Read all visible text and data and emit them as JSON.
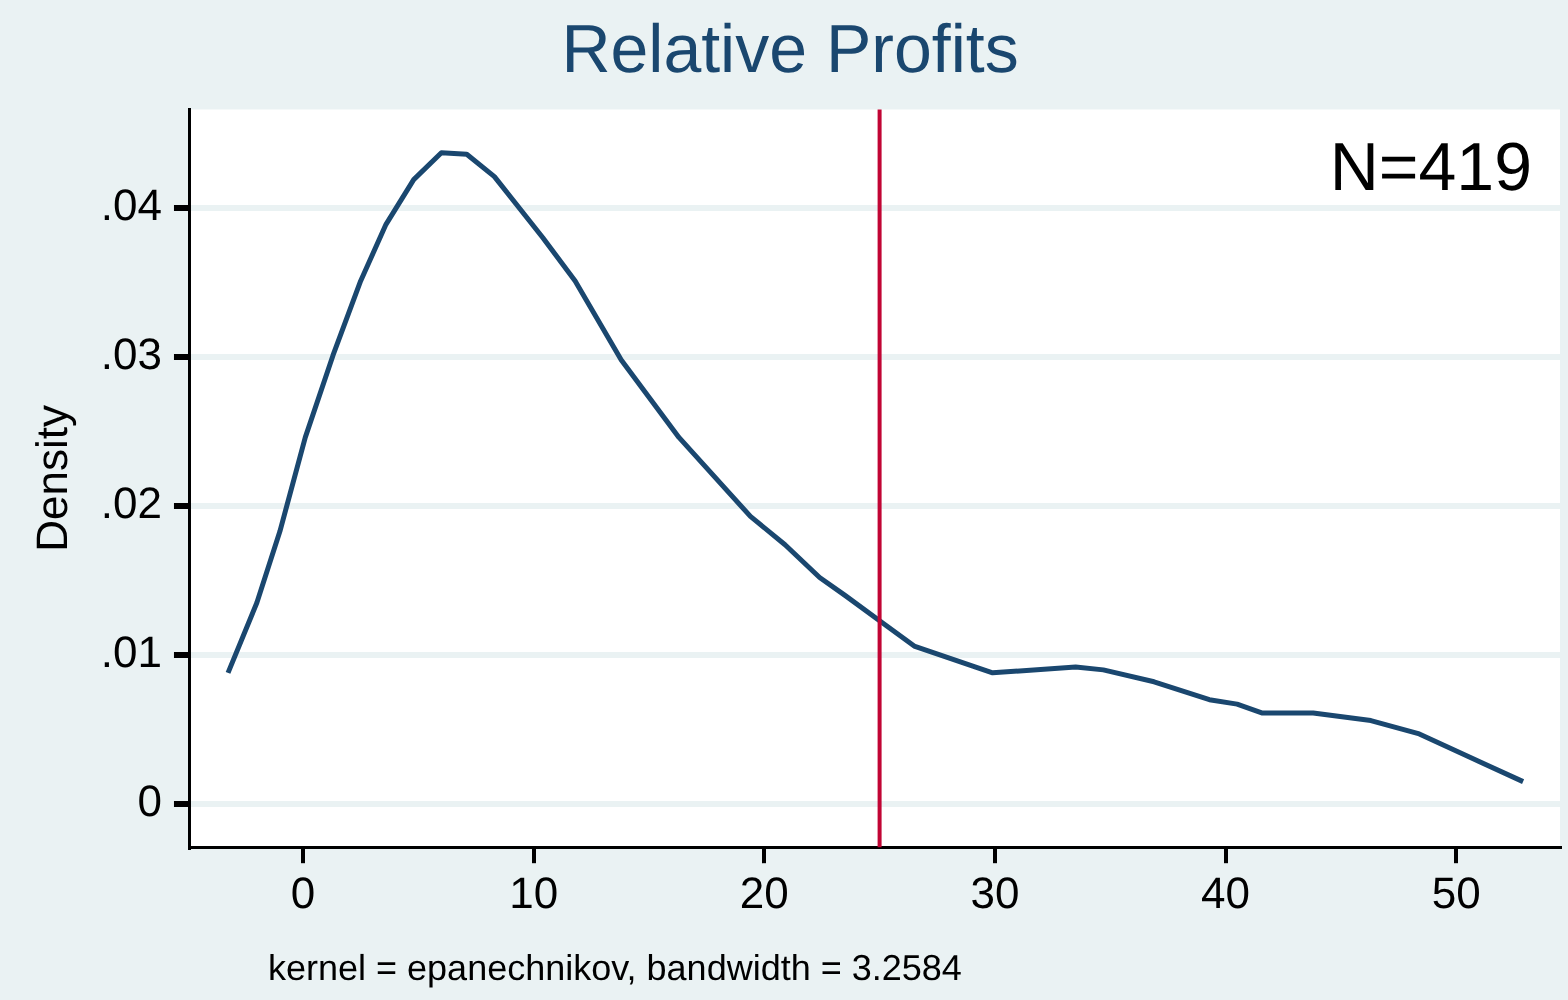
{
  "chart_data": {
    "type": "line",
    "title": "Relative Profits",
    "ylabel": "Density",
    "annotations": [
      "N=419",
      "kernel = epanechnikov, bandwidth = 3.2584"
    ],
    "series": [
      {
        "color": "#1a476f",
        "x": [
          -3.25,
          -2.0,
          -1.0,
          0.1,
          1.3,
          2.5,
          3.6,
          4.8,
          6.0,
          7.1,
          8.3,
          10.4,
          11.8,
          13.8,
          16.3,
          19.4,
          20.9,
          22.4,
          23.5,
          25.0,
          26.5,
          29.9,
          33.5,
          34.7,
          36.9,
          39.3,
          40.5,
          41.6,
          43.8,
          46.3,
          48.4,
          50.5,
          52.9
        ],
        "values": [
          0.0088,
          0.0135,
          0.0183,
          0.0246,
          0.0301,
          0.0351,
          0.0389,
          0.0419,
          0.0437,
          0.0436,
          0.0421,
          0.038,
          0.0351,
          0.0298,
          0.0246,
          0.0193,
          0.0174,
          0.0152,
          0.014,
          0.0123,
          0.0106,
          0.0088,
          0.0092,
          0.009,
          0.0082,
          0.007,
          0.0067,
          0.0061,
          0.0061,
          0.0056,
          0.0047,
          0.0032,
          0.0015
        ]
      }
    ],
    "xlim": [
      -4.9,
      54.5
    ],
    "xticks": [
      0,
      10,
      20,
      30,
      40,
      50
    ],
    "ylim": [
      -0.0029,
      0.0466
    ],
    "yticks": [
      {
        "value": 0,
        "label": "0"
      },
      {
        "value": 0.01,
        "label": ".01"
      },
      {
        "value": 0.02,
        "label": ".02"
      },
      {
        "value": 0.03,
        "label": ".03"
      },
      {
        "value": 0.04,
        "label": ".04"
      }
    ],
    "grid": "y",
    "legend": false,
    "marker": "none",
    "line_style": "solid",
    "ref_lines": [
      {
        "axis": "x",
        "value": 25,
        "color": "#c10534"
      }
    ]
  }
}
